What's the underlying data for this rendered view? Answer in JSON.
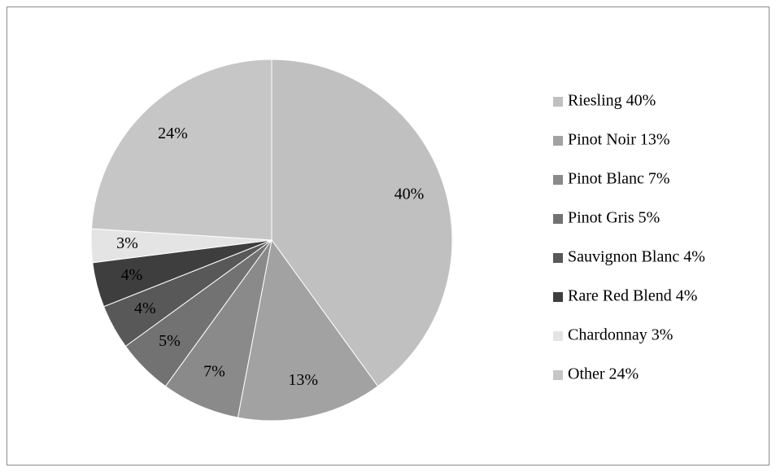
{
  "chart_data": {
    "type": "pie",
    "categories": [
      "Riesling 40%",
      "Pinot Noir 13%",
      "Pinot Blanc 7%",
      "Pinot Gris 5%",
      "Sauvignon Blanc 4%",
      "Rare Red Blend 4%",
      "Chardonnay 3%",
      "Other 24%"
    ],
    "values": [
      40,
      13,
      7,
      5,
      4,
      4,
      3,
      24
    ],
    "value_labels": [
      "40%",
      "13%",
      "7%",
      "5%",
      "4%",
      "4%",
      "3%",
      "24%"
    ],
    "colors": [
      "#c0c0c0",
      "#a2a2a2",
      "#8a8a8a",
      "#727272",
      "#585858",
      "#3e3e3e",
      "#e4e4e4",
      "#c6c6c6"
    ],
    "legend": "right"
  }
}
